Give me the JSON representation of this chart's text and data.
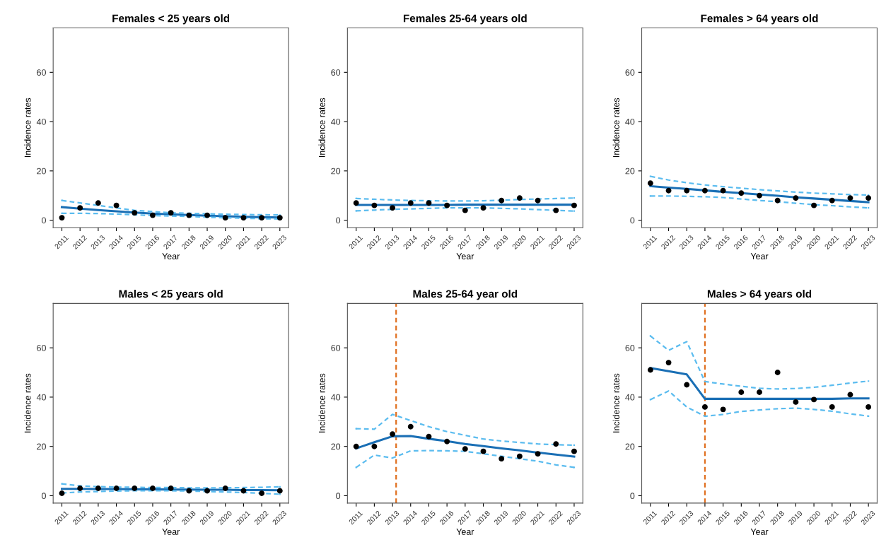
{
  "chart_data": [
    {
      "type": "line",
      "title": "Females < 25 years old",
      "xlabel": "Year",
      "ylabel": "Incidence rates",
      "x": [
        2011,
        2012,
        2013,
        2014,
        2015,
        2016,
        2017,
        2018,
        2019,
        2020,
        2021,
        2022,
        2023
      ],
      "xlim": [
        2010.52,
        2023.48
      ],
      "ylim": [
        -3,
        78
      ],
      "xticks": [
        2011,
        2012,
        2013,
        2014,
        2015,
        2016,
        2017,
        2018,
        2019,
        2020,
        2021,
        2022,
        2023
      ],
      "yticks": [
        0,
        20,
        40,
        60
      ],
      "grid": false,
      "series": [
        {
          "type": "scatter",
          "marker": "circle",
          "color": "#000000",
          "values": [
            1,
            5,
            7,
            6,
            3,
            2,
            3,
            2,
            2,
            1,
            1,
            1,
            1
          ]
        },
        {
          "type": "line",
          "line_style": "solid",
          "color": "#1a6fb5",
          "values": [
            5.3,
            4.7,
            4.1,
            3.6,
            3.1,
            2.7,
            2.4,
            2.1,
            1.8,
            1.6,
            1.4,
            1.2,
            1.1
          ]
        },
        {
          "type": "line",
          "line_style": "dashed",
          "color": "#5bbcef",
          "values": [
            8,
            7,
            6,
            5,
            4,
            3.5,
            3,
            2.8,
            2.6,
            2.4,
            2.3,
            2.2,
            2.1
          ]
        },
        {
          "type": "line",
          "line_style": "dashed",
          "color": "#5bbcef",
          "values": [
            2.8,
            2.8,
            2.7,
            2.5,
            2.2,
            1.9,
            1.7,
            1.5,
            1.2,
            1,
            0.8,
            0.6,
            0.5
          ]
        }
      ]
    },
    {
      "type": "line",
      "title": "Females 25-64 years old",
      "xlabel": "Year",
      "ylabel": "Incidence rates",
      "x": [
        2011,
        2012,
        2013,
        2014,
        2015,
        2016,
        2017,
        2018,
        2019,
        2020,
        2021,
        2022,
        2023
      ],
      "xlim": [
        2010.52,
        2023.48
      ],
      "ylim": [
        -3,
        78
      ],
      "xticks": [
        2011,
        2012,
        2013,
        2014,
        2015,
        2016,
        2017,
        2018,
        2019,
        2020,
        2021,
        2022,
        2023
      ],
      "yticks": [
        0,
        20,
        40,
        60
      ],
      "grid": false,
      "series": [
        {
          "type": "scatter",
          "marker": "circle",
          "color": "#000000",
          "values": [
            7,
            6,
            5,
            7,
            7,
            6,
            4,
            5,
            8,
            9,
            8,
            4,
            6
          ]
        },
        {
          "type": "line",
          "line_style": "solid",
          "color": "#1a6fb5",
          "values": [
            6.2,
            6.2,
            6.2,
            6.2,
            6.2,
            6.2,
            6.3,
            6.3,
            6.3,
            6.3,
            6.3,
            6.3,
            6.3
          ]
        },
        {
          "type": "line",
          "line_style": "dashed",
          "color": "#5bbcef",
          "values": [
            8.8,
            8.5,
            8.2,
            8,
            7.9,
            7.8,
            7.8,
            7.9,
            8.1,
            8.4,
            8.6,
            8.8,
            9
          ]
        },
        {
          "type": "line",
          "line_style": "dashed",
          "color": "#5bbcef",
          "values": [
            3.8,
            4.1,
            4.4,
            4.6,
            4.8,
            5,
            5,
            5,
            4.8,
            4.6,
            4.3,
            4,
            3.7
          ]
        }
      ]
    },
    {
      "type": "line",
      "title": "Females > 64 years old",
      "xlabel": "Year",
      "ylabel": "Incidence rates",
      "x": [
        2011,
        2012,
        2013,
        2014,
        2015,
        2016,
        2017,
        2018,
        2019,
        2020,
        2021,
        2022,
        2023
      ],
      "xlim": [
        2010.52,
        2023.48
      ],
      "ylim": [
        -3,
        78
      ],
      "xticks": [
        2011,
        2012,
        2013,
        2014,
        2015,
        2016,
        2017,
        2018,
        2019,
        2020,
        2021,
        2022,
        2023
      ],
      "yticks": [
        0,
        20,
        40,
        60
      ],
      "grid": false,
      "series": [
        {
          "type": "scatter",
          "marker": "circle",
          "color": "#000000",
          "values": [
            15,
            12,
            12,
            12,
            12,
            11,
            10,
            8,
            9,
            6,
            8,
            9,
            9
          ]
        },
        {
          "type": "line",
          "line_style": "solid",
          "color": "#1a6fb5",
          "values": [
            13.8,
            13.2,
            12.7,
            12.1,
            11.5,
            11,
            10.4,
            9.9,
            9.3,
            8.8,
            8.3,
            7.8,
            7.3
          ]
        },
        {
          "type": "line",
          "line_style": "dashed",
          "color": "#5bbcef",
          "values": [
            17.8,
            16.3,
            15.2,
            14.3,
            13.6,
            13,
            12.4,
            11.9,
            11.4,
            11,
            10.7,
            10.4,
            10.2
          ]
        },
        {
          "type": "line",
          "line_style": "dashed",
          "color": "#5bbcef",
          "values": [
            9.8,
            9.8,
            9.7,
            9.5,
            9.2,
            8.6,
            8,
            7.5,
            6.9,
            6.3,
            5.9,
            5.4,
            5
          ]
        }
      ]
    },
    {
      "type": "line",
      "title": "Males < 25 years old",
      "xlabel": "Year",
      "ylabel": "Incidence rates",
      "x": [
        2011,
        2012,
        2013,
        2014,
        2015,
        2016,
        2017,
        2018,
        2019,
        2020,
        2021,
        2022,
        2023
      ],
      "xlim": [
        2010.52,
        2023.48
      ],
      "ylim": [
        -3,
        78
      ],
      "xticks": [
        2011,
        2012,
        2013,
        2014,
        2015,
        2016,
        2017,
        2018,
        2019,
        2020,
        2021,
        2022,
        2023
      ],
      "yticks": [
        0,
        20,
        40,
        60
      ],
      "grid": false,
      "series": [
        {
          "type": "scatter",
          "marker": "circle",
          "color": "#000000",
          "values": [
            1,
            3,
            3,
            3,
            3,
            3,
            3,
            2,
            2,
            3,
            2,
            1,
            2
          ]
        },
        {
          "type": "line",
          "line_style": "solid",
          "color": "#1a6fb5",
          "values": [
            2.8,
            2.8,
            2.7,
            2.7,
            2.6,
            2.6,
            2.5,
            2.5,
            2.4,
            2.4,
            2.3,
            2.3,
            2.2
          ]
        },
        {
          "type": "line",
          "line_style": "dashed",
          "color": "#5bbcef",
          "values": [
            4.8,
            4,
            3.7,
            3.5,
            3.4,
            3.3,
            3.3,
            3.2,
            3.2,
            3.2,
            3.3,
            3.4,
            3.6
          ]
        },
        {
          "type": "line",
          "line_style": "dashed",
          "color": "#5bbcef",
          "values": [
            1.1,
            1.5,
            1.7,
            1.9,
            2,
            2,
            2,
            1.9,
            1.7,
            1.5,
            1.3,
            1,
            0.6
          ]
        }
      ]
    },
    {
      "type": "line",
      "title": "Males 25-64 year old",
      "xlabel": "Year",
      "ylabel": "Incidence rates",
      "x": [
        2011,
        2012,
        2013,
        2014,
        2015,
        2016,
        2017,
        2018,
        2019,
        2020,
        2021,
        2022,
        2023
      ],
      "xlim": [
        2010.52,
        2023.48
      ],
      "ylim": [
        -3,
        78
      ],
      "xticks": [
        2011,
        2012,
        2013,
        2014,
        2015,
        2016,
        2017,
        2018,
        2019,
        2020,
        2021,
        2022,
        2023
      ],
      "yticks": [
        0,
        20,
        40,
        60
      ],
      "grid": false,
      "ref_lines": [
        {
          "axis": "x",
          "value": 2013.2,
          "color": "#e07020",
          "line_style": "dashed"
        }
      ],
      "series": [
        {
          "type": "scatter",
          "marker": "circle",
          "color": "#000000",
          "values": [
            20,
            20,
            25,
            28,
            24,
            22,
            19,
            18,
            15,
            16,
            17,
            21,
            18
          ]
        },
        {
          "type": "line",
          "line_style": "solid",
          "color": "#1a6fb5",
          "values": [
            19.2,
            21.7,
            24.1,
            24.2,
            23.1,
            22.1,
            21,
            20.1,
            19.2,
            18.4,
            17.5,
            16.7,
            15.9
          ]
        },
        {
          "type": "line",
          "line_style": "dashed",
          "color": "#5bbcef",
          "values": [
            27.2,
            27,
            33,
            30.5,
            28,
            26,
            24.5,
            23,
            22.2,
            21.6,
            21,
            20.7,
            20.5
          ]
        },
        {
          "type": "line",
          "line_style": "dashed",
          "color": "#5bbcef",
          "values": [
            11.5,
            16.5,
            15.3,
            18.2,
            18.3,
            18.2,
            18,
            17,
            16,
            15,
            14,
            12.5,
            11.5
          ]
        }
      ]
    },
    {
      "type": "line",
      "title": "Males > 64 years old",
      "xlabel": "Year",
      "ylabel": "Incidence rates",
      "x": [
        2011,
        2012,
        2013,
        2014,
        2015,
        2016,
        2017,
        2018,
        2019,
        2020,
        2021,
        2022,
        2023
      ],
      "xlim": [
        2010.52,
        2023.48
      ],
      "ylim": [
        -3,
        78
      ],
      "xticks": [
        2011,
        2012,
        2013,
        2014,
        2015,
        2016,
        2017,
        2018,
        2019,
        2020,
        2021,
        2022,
        2023
      ],
      "yticks": [
        0,
        20,
        40,
        60
      ],
      "grid": false,
      "ref_lines": [
        {
          "axis": "x",
          "value": 2014,
          "color": "#e07020",
          "line_style": "dashed"
        }
      ],
      "series": [
        {
          "type": "scatter",
          "marker": "circle",
          "color": "#000000",
          "values": [
            51,
            54,
            45,
            36,
            35,
            42,
            42,
            50,
            38,
            39,
            36,
            41,
            36
          ]
        },
        {
          "type": "line",
          "line_style": "solid",
          "color": "#1a6fb5",
          "values": [
            51.8,
            50.5,
            49.2,
            39.3,
            39.3,
            39.3,
            39.3,
            39.3,
            39.3,
            39.3,
            39.3,
            39.5,
            39.5
          ]
        },
        {
          "type": "line",
          "line_style": "dashed",
          "color": "#5bbcef",
          "values": [
            64.8,
            59,
            62.5,
            46.3,
            45.3,
            44.4,
            43.6,
            43.3,
            43.5,
            44,
            44.8,
            45.7,
            46.5
          ]
        },
        {
          "type": "line",
          "line_style": "dashed",
          "color": "#5bbcef",
          "values": [
            39,
            42.5,
            36,
            32.2,
            33,
            34.2,
            34.8,
            35.3,
            35.5,
            35,
            34.3,
            33.2,
            32.3
          ]
        }
      ]
    }
  ]
}
